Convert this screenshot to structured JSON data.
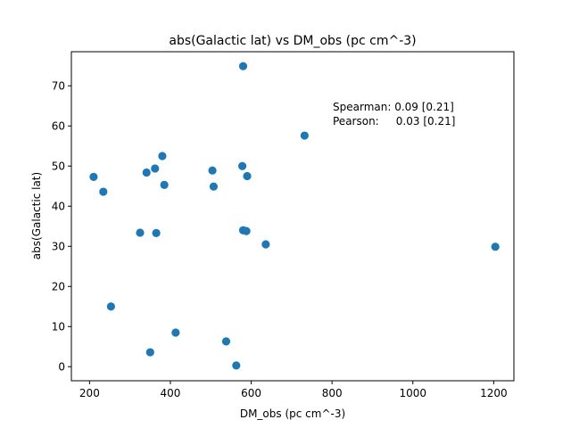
{
  "chart_data": {
    "type": "scatter",
    "title": "abs(Galactic lat) vs DM_obs (pc cm^-3)",
    "xlabel": "DM_obs (pc cm^-3)",
    "ylabel": "abs(Galactic lat)",
    "xlim": [
      155,
      1250
    ],
    "ylim": [
      -3.5,
      78.5
    ],
    "xticks": [
      200,
      400,
      600,
      800,
      1000,
      1200
    ],
    "yticks": [
      0,
      10,
      20,
      30,
      40,
      50,
      60,
      70
    ],
    "grid": false,
    "marker_color": "#1f77b4",
    "annotations": [
      "Spearman: 0.09 [0.21]",
      "Pearson:     0.03 [0.21]"
    ],
    "points": [
      {
        "x": 210,
        "y": 47.3
      },
      {
        "x": 234,
        "y": 43.6
      },
      {
        "x": 253,
        "y": 15.0
      },
      {
        "x": 325,
        "y": 33.4
      },
      {
        "x": 341,
        "y": 48.4
      },
      {
        "x": 350,
        "y": 3.6
      },
      {
        "x": 362,
        "y": 49.4
      },
      {
        "x": 365,
        "y": 33.3
      },
      {
        "x": 380,
        "y": 52.5
      },
      {
        "x": 385,
        "y": 45.3
      },
      {
        "x": 413,
        "y": 8.5
      },
      {
        "x": 504,
        "y": 48.9
      },
      {
        "x": 507,
        "y": 44.9
      },
      {
        "x": 538,
        "y": 6.3
      },
      {
        "x": 563,
        "y": 0.3
      },
      {
        "x": 578,
        "y": 50.0
      },
      {
        "x": 580,
        "y": 74.9
      },
      {
        "x": 580,
        "y": 34.0
      },
      {
        "x": 588,
        "y": 33.8
      },
      {
        "x": 590,
        "y": 47.5
      },
      {
        "x": 636,
        "y": 30.5
      },
      {
        "x": 732,
        "y": 57.6
      },
      {
        "x": 1204,
        "y": 29.9
      }
    ]
  }
}
